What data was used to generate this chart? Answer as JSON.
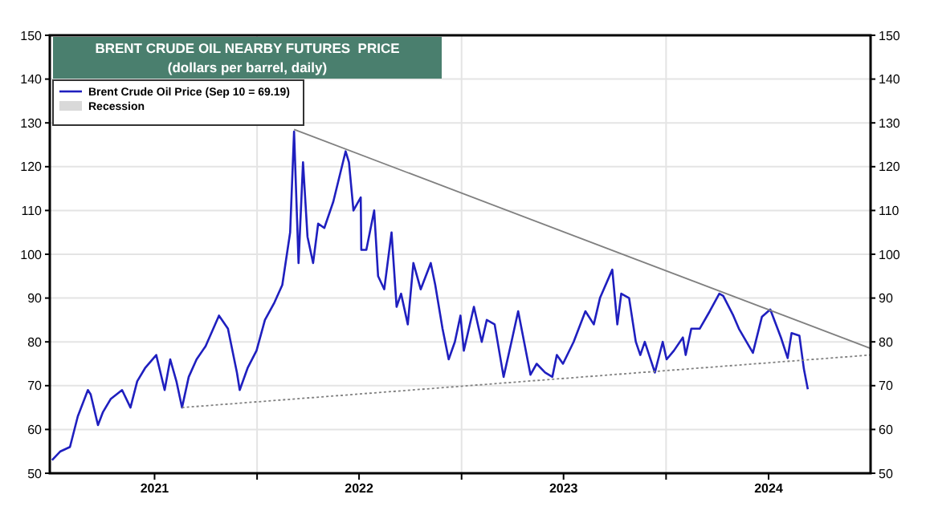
{
  "chart_data": {
    "type": "line",
    "title": "BRENT CRUDE OIL NEARBY FUTURES  PRICE",
    "subtitle": "(dollars per barrel, daily)",
    "xlim": [
      "2020-12-27",
      "2024-12-31"
    ],
    "xticks": [
      {
        "value": "2021-07-02",
        "label": "2021"
      },
      {
        "value": "2022-01-01",
        "label": null
      },
      {
        "value": "2022-07-02",
        "label": "2022"
      },
      {
        "value": "2023-01-01",
        "label": null
      },
      {
        "value": "2023-07-02",
        "label": "2023"
      },
      {
        "value": "2024-01-01",
        "label": null
      },
      {
        "value": "2024-07-02",
        "label": "2024"
      }
    ],
    "ylim": [
      50,
      150
    ],
    "yticks": [
      50,
      60,
      70,
      80,
      90,
      100,
      110,
      120,
      130,
      140,
      150
    ],
    "y2lim": [
      50,
      150
    ],
    "y2ticks": [
      50,
      60,
      70,
      80,
      90,
      100,
      110,
      120,
      130,
      140,
      150
    ],
    "grid": true,
    "legend": "top left",
    "series": [
      {
        "name": "Brent Crude Oil Price (Sep 10 = 69.19)",
        "color": "#1f1fbf",
        "line_style": "solid",
        "x": [
          "2020-12-31",
          "2021-01-15",
          "2021-02-01",
          "2021-02-15",
          "2021-03-05",
          "2021-03-10",
          "2021-03-23",
          "2021-04-01",
          "2021-04-15",
          "2021-05-05",
          "2021-05-20",
          "2021-06-01",
          "2021-06-15",
          "2021-07-05",
          "2021-07-20",
          "2021-07-30",
          "2021-08-10",
          "2021-08-20",
          "2021-09-01",
          "2021-09-15",
          "2021-10-01",
          "2021-10-25",
          "2021-11-10",
          "2021-11-26",
          "2021-12-01",
          "2021-12-15",
          "2021-12-31",
          "2022-01-15",
          "2022-02-01",
          "2022-02-15",
          "2022-03-01",
          "2022-03-08",
          "2022-03-16",
          "2022-03-24",
          "2022-04-01",
          "2022-04-11",
          "2022-04-20",
          "2022-05-01",
          "2022-05-17",
          "2022-06-08",
          "2022-06-14",
          "2022-06-22",
          "2022-07-05",
          "2022-07-06",
          "2022-07-15",
          "2022-07-29",
          "2022-08-05",
          "2022-08-16",
          "2022-08-29",
          "2022-09-07",
          "2022-09-15",
          "2022-09-27",
          "2022-10-07",
          "2022-10-20",
          "2022-11-07",
          "2022-11-15",
          "2022-11-28",
          "2022-12-09",
          "2022-12-20",
          "2022-12-30",
          "2023-01-05",
          "2023-01-23",
          "2023-02-06",
          "2023-02-15",
          "2023-03-01",
          "2023-03-17",
          "2023-03-31",
          "2023-04-12",
          "2023-05-04",
          "2023-05-15",
          "2023-05-30",
          "2023-06-12",
          "2023-06-20",
          "2023-07-01",
          "2023-07-20",
          "2023-08-10",
          "2023-08-25",
          "2023-09-05",
          "2023-09-27",
          "2023-10-06",
          "2023-10-13",
          "2023-10-27",
          "2023-11-08",
          "2023-11-16",
          "2023-11-24",
          "2023-12-12",
          "2023-12-26",
          "2024-01-02",
          "2024-01-15",
          "2024-01-31",
          "2024-02-05",
          "2024-02-15",
          "2024-03-01",
          "2024-03-19",
          "2024-04-05",
          "2024-04-12",
          "2024-04-30",
          "2024-05-10",
          "2024-06-04",
          "2024-06-20",
          "2024-07-05",
          "2024-07-24",
          "2024-08-05",
          "2024-08-12",
          "2024-08-26",
          "2024-09-03",
          "2024-09-10"
        ],
        "values": [
          53,
          55,
          56,
          63,
          69,
          68,
          61,
          64,
          67,
          69,
          65,
          71,
          74,
          77,
          69,
          76,
          71,
          65,
          72,
          76,
          79,
          86,
          83,
          73,
          69,
          74,
          78,
          85,
          89,
          93,
          105,
          128,
          98,
          121,
          104,
          98,
          107,
          106,
          112,
          123.5,
          121,
          110,
          113,
          101,
          101,
          110,
          95,
          92,
          105,
          88,
          91,
          84,
          98,
          92,
          98,
          93,
          83,
          76,
          80,
          86,
          78,
          88,
          80,
          85,
          84,
          72,
          80,
          87,
          72.5,
          75,
          73,
          72,
          77,
          75,
          80,
          87,
          84,
          90,
          96.5,
          84,
          91,
          90,
          80,
          77,
          80,
          73,
          80,
          76,
          78,
          81,
          77,
          83,
          83,
          87,
          91,
          90.5,
          86,
          83,
          77.5,
          85.7,
          87.4,
          81,
          76.3,
          82,
          81.4,
          73.8,
          69.19
        ]
      },
      {
        "type": "line",
        "color": "#808080",
        "line_style": "solid",
        "x": [
          "2022-03-08",
          "2024-12-31"
        ],
        "values": [
          128.5,
          78.5
        ]
      },
      {
        "type": "line",
        "color": "#808080",
        "line_style": "dotted",
        "x": [
          "2021-08-20",
          "2024-12-31"
        ],
        "values": [
          65,
          77
        ]
      },
      {
        "name": "Recession",
        "type": "area",
        "color": "#d9d9d9"
      }
    ]
  }
}
